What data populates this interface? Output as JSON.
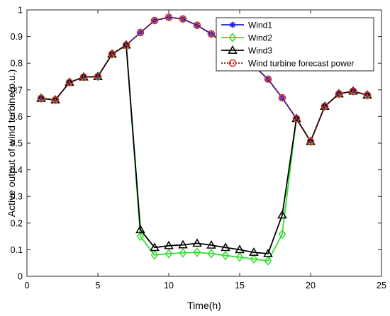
{
  "chart_data": {
    "type": "line",
    "title": "",
    "xlabel": "Time(h)",
    "ylabel": "Active output of wind turbine(p.u.)",
    "xlim": [
      0,
      25
    ],
    "ylim": [
      0,
      1
    ],
    "xticks": [
      "0",
      "5",
      "10",
      "15",
      "20",
      "25"
    ],
    "yticks": [
      "0",
      "0.1",
      "0.2",
      "0.3",
      "0.4",
      "0.5",
      "0.6",
      "0.7",
      "0.8",
      "0.9",
      "1"
    ],
    "grid": false,
    "legend_position": "top-right",
    "x": [
      1,
      2,
      3,
      4,
      5,
      6,
      7,
      8,
      9,
      10,
      11,
      12,
      13,
      14,
      15,
      16,
      17,
      18,
      19,
      20,
      21,
      22,
      23,
      24
    ],
    "series": [
      {
        "name": "Wind1",
        "color": "#1f1fd6",
        "marker": "asterisk",
        "values": [
          0.668,
          0.662,
          0.728,
          0.748,
          0.75,
          0.834,
          0.868,
          0.915,
          0.96,
          0.972,
          0.966,
          0.942,
          0.91,
          0.87,
          0.83,
          0.79,
          0.74,
          0.67,
          0.592,
          0.506,
          0.638,
          0.685,
          0.695,
          0.68
        ]
      },
      {
        "name": "Wind2",
        "color": "#33dd33",
        "marker": "diamond",
        "values": [
          0.668,
          0.662,
          0.728,
          0.748,
          0.75,
          0.834,
          0.868,
          0.15,
          0.08,
          0.085,
          0.088,
          0.09,
          0.085,
          0.078,
          0.072,
          0.065,
          0.058,
          0.158,
          0.592,
          0.506,
          0.638,
          0.685,
          0.695,
          0.68
        ]
      },
      {
        "name": "Wind3",
        "color": "#000000",
        "marker": "triangle",
        "values": [
          0.668,
          0.662,
          0.728,
          0.748,
          0.75,
          0.834,
          0.868,
          0.175,
          0.108,
          0.115,
          0.118,
          0.124,
          0.117,
          0.108,
          0.1,
          0.09,
          0.085,
          0.23,
          0.592,
          0.506,
          0.638,
          0.685,
          0.695,
          0.68
        ]
      },
      {
        "name": "Wind turbine forecast power",
        "color": "#d93319",
        "line_color": "#7a1010",
        "marker": "circle",
        "values": [
          0.668,
          0.662,
          0.728,
          0.748,
          0.75,
          0.834,
          0.868,
          0.915,
          0.96,
          0.972,
          0.966,
          0.942,
          0.91,
          0.87,
          0.83,
          0.79,
          0.74,
          0.67,
          0.592,
          0.506,
          0.638,
          0.685,
          0.695,
          0.68
        ]
      }
    ]
  }
}
